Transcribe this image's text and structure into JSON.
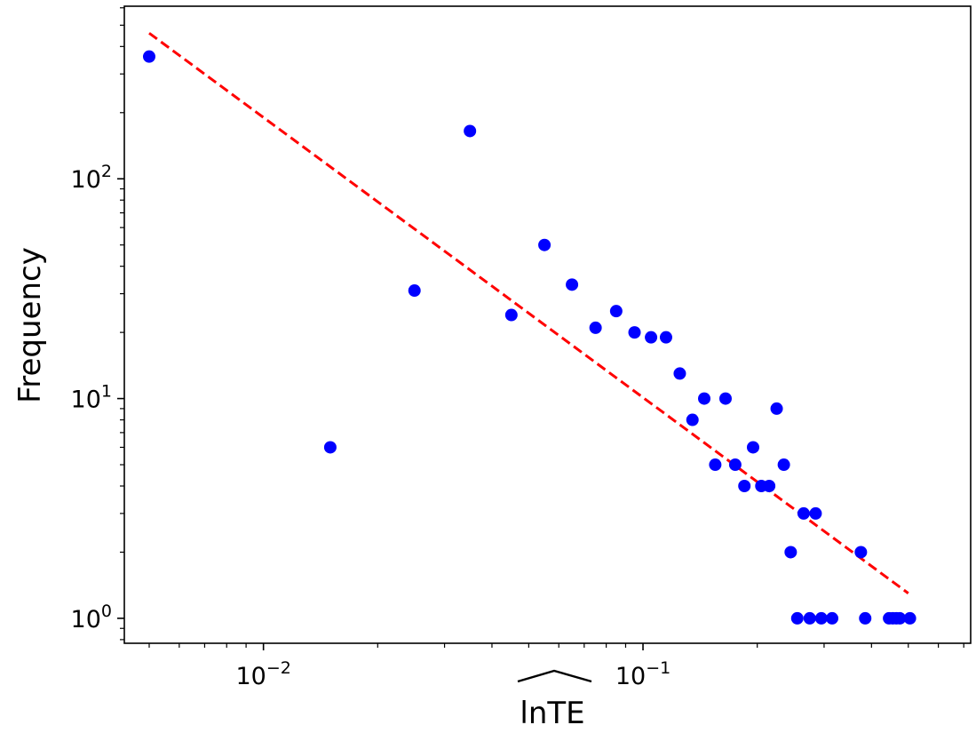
{
  "chart_data": {
    "type": "scatter",
    "title": "",
    "xlabel": "lnTE",
    "ylabel": "Frequency",
    "xscale": "log",
    "yscale": "log",
    "xlim": [
      0.0043,
      0.73
    ],
    "ylim": [
      0.77,
      610
    ],
    "grid": false,
    "x_ticks": [
      {
        "base": "10",
        "exp": "−2",
        "value": 0.01
      },
      {
        "base": "10",
        "exp": "−1",
        "value": 0.1
      }
    ],
    "y_ticks": [
      {
        "base": "10",
        "exp": "0",
        "value": 1
      },
      {
        "base": "10",
        "exp": "1",
        "value": 10
      },
      {
        "base": "10",
        "exp": "2",
        "value": 100
      }
    ],
    "series": [
      {
        "kind": "points",
        "color": "#0000ff",
        "points": [
          [
            0.005,
            360
          ],
          [
            0.015,
            6
          ],
          [
            0.025,
            31
          ],
          [
            0.035,
            165
          ],
          [
            0.045,
            24
          ],
          [
            0.055,
            50
          ],
          [
            0.065,
            33
          ],
          [
            0.075,
            21
          ],
          [
            0.085,
            25
          ],
          [
            0.095,
            20
          ],
          [
            0.105,
            19
          ],
          [
            0.115,
            19
          ],
          [
            0.125,
            13
          ],
          [
            0.135,
            8
          ],
          [
            0.145,
            10
          ],
          [
            0.155,
            5
          ],
          [
            0.165,
            10
          ],
          [
            0.175,
            5
          ],
          [
            0.185,
            4
          ],
          [
            0.195,
            6
          ],
          [
            0.205,
            4
          ],
          [
            0.215,
            4
          ],
          [
            0.225,
            9
          ],
          [
            0.235,
            5
          ],
          [
            0.245,
            2
          ],
          [
            0.255,
            1
          ],
          [
            0.265,
            3
          ],
          [
            0.275,
            1
          ],
          [
            0.285,
            3
          ],
          [
            0.295,
            1
          ],
          [
            0.315,
            1
          ],
          [
            0.375,
            2
          ],
          [
            0.385,
            1
          ],
          [
            0.445,
            1
          ],
          [
            0.455,
            1
          ],
          [
            0.465,
            1
          ],
          [
            0.475,
            1
          ],
          [
            0.505,
            1
          ]
        ]
      },
      {
        "kind": "fit-line",
        "color": "#ff0000",
        "style": "dashed",
        "points": [
          [
            0.005,
            460
          ],
          [
            0.5,
            1.3
          ]
        ]
      }
    ]
  }
}
